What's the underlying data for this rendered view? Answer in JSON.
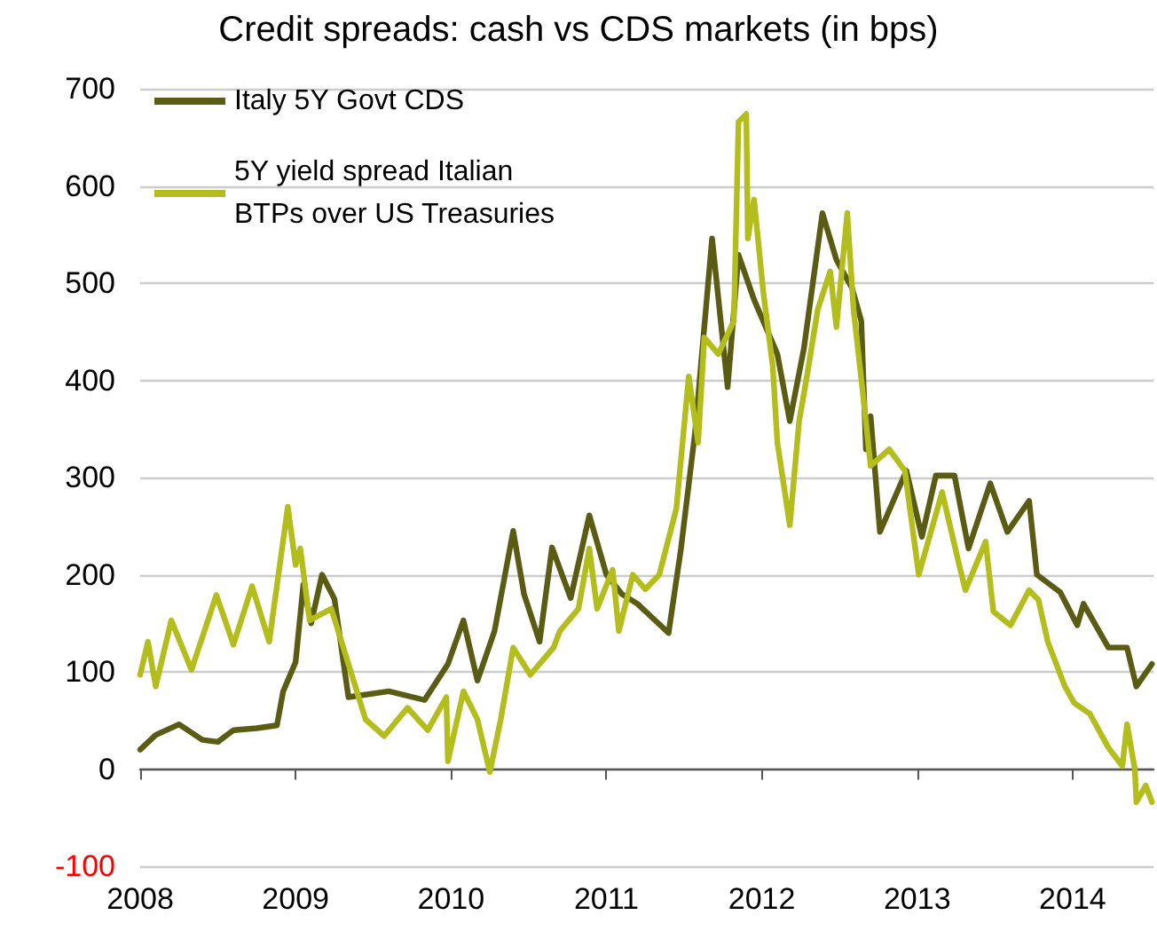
{
  "chart_data": {
    "type": "line",
    "title": "Credit spreads: cash vs CDS markets (in bps)",
    "xlim": [
      2008,
      2014.52
    ],
    "xticks": [
      2008,
      2009,
      2010,
      2011,
      2012,
      2013,
      2014
    ],
    "ylim": [
      -100,
      700
    ],
    "yticks": [
      -100,
      0,
      100,
      200,
      300,
      400,
      500,
      600,
      700
    ],
    "grid": "y",
    "legend": "top left",
    "marker": "none",
    "line_style": "solid",
    "series": [
      {
        "name": "Italy 5Y Govt CDS",
        "color": "#5a5c14",
        "x": [
          2008,
          2008.1,
          2008.25,
          2008.4,
          2008.5,
          2008.6,
          2008.75,
          2008.88,
          2008.92,
          2009.0,
          2009.05,
          2009.1,
          2009.17,
          2009.25,
          2009.34,
          2009.6,
          2009.83,
          2009.98,
          2010.08,
          2010.17,
          2010.28,
          2010.4,
          2010.47,
          2010.57,
          2010.65,
          2010.77,
          2010.89,
          2011.0,
          2011.1,
          2011.2,
          2011.3,
          2011.4,
          2011.48,
          2011.57,
          2011.68,
          2011.78,
          2011.85,
          2011.95,
          2012.1,
          2012.18,
          2012.27,
          2012.39,
          2012.48,
          2012.58,
          2012.64,
          2012.67,
          2012.7,
          2012.76,
          2012.93,
          2013.03,
          2013.12,
          2013.24,
          2013.33,
          2013.47,
          2013.58,
          2013.72,
          2013.77,
          2013.92,
          2014.03,
          2014.07,
          2014.23,
          2014.35,
          2014.41,
          2014.51
        ],
        "values": [
          20,
          35,
          46,
          30,
          28,
          40,
          42,
          45,
          80,
          110,
          190,
          150,
          200,
          175,
          74,
          80,
          71,
          108,
          153,
          91,
          142,
          245,
          180,
          131,
          228,
          176,
          261,
          200,
          180,
          170,
          155,
          140,
          227,
          346,
          546,
          393,
          529,
          483,
          427,
          358,
          432,
          572,
          524,
          495,
          461,
          329,
          363,
          244,
          307,
          239,
          302,
          302,
          227,
          294,
          244,
          276,
          200,
          182,
          148,
          170,
          125,
          125,
          85,
          108
        ]
      },
      {
        "name": "5Y yield spread Italian BTPs over US Treasuries",
        "color": "#b3bd1c",
        "x": [
          2008,
          2008.05,
          2008.1,
          2008.2,
          2008.33,
          2008.49,
          2008.6,
          2008.72,
          2008.83,
          2008.95,
          2009.0,
          2009.03,
          2009.09,
          2009.23,
          2009.34,
          2009.45,
          2009.57,
          2009.72,
          2009.85,
          2009.97,
          2009.98,
          2010.08,
          2010.17,
          2010.25,
          2010.32,
          2010.4,
          2010.51,
          2010.66,
          2010.7,
          2010.82,
          2010.89,
          2010.94,
          2011.04,
          2011.08,
          2011.17,
          2011.25,
          2011.34,
          2011.45,
          2011.53,
          2011.59,
          2011.63,
          2011.72,
          2011.82,
          2011.85,
          2011.9,
          2011.91,
          2011.95,
          2012.01,
          2012.07,
          2012.1,
          2012.18,
          2012.24,
          2012.29,
          2012.36,
          2012.44,
          2012.48,
          2012.55,
          2012.59,
          2012.65,
          2012.7,
          2012.82,
          2012.92,
          2013.01,
          2013.16,
          2013.27,
          2013.31,
          2013.44,
          2013.49,
          2013.6,
          2013.72,
          2013.78,
          2013.84,
          2013.95,
          2014.01,
          2014.11,
          2014.23,
          2014.32,
          2014.35,
          2014.4,
          2014.41,
          2014.47,
          2014.51
        ],
        "values": [
          97,
          131,
          85,
          153,
          102,
          179,
          128,
          188,
          131,
          270,
          210,
          227,
          153,
          165,
          108,
          51,
          34,
          63,
          40,
          74,
          8,
          80,
          51,
          -3,
          51,
          125,
          97,
          125,
          142,
          165,
          227,
          165,
          205,
          142,
          200,
          185,
          200,
          268,
          404,
          336,
          444,
          427,
          461,
          666,
          674,
          546,
          586,
          490,
          415,
          336,
          251,
          358,
          404,
          473,
          512,
          455,
          572,
          473,
          387,
          312,
          329,
          307,
          200,
          285,
          210,
          184,
          234,
          162,
          148,
          184,
          174,
          131,
          85,
          68,
          57,
          22,
          3,
          46,
          0,
          -34,
          -17,
          -34
        ]
      }
    ]
  }
}
